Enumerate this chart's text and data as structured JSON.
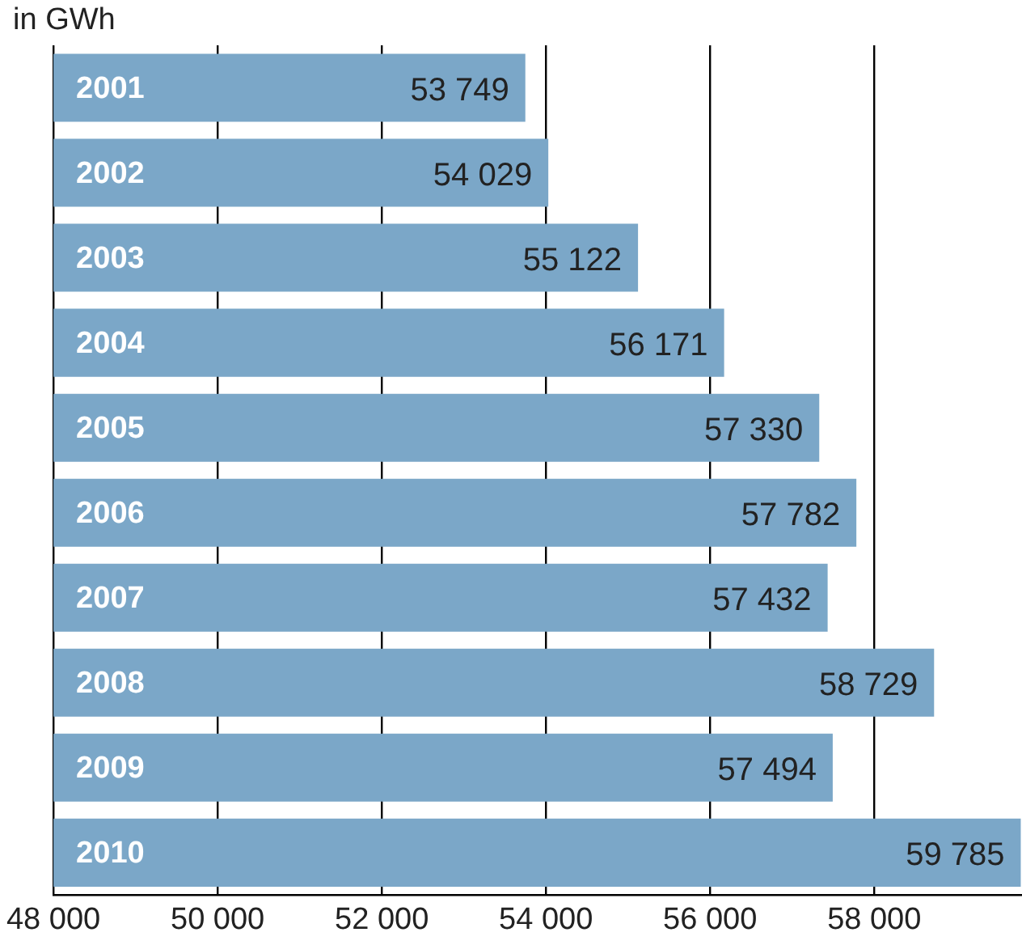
{
  "chart_data": {
    "type": "bar",
    "orientation": "horizontal",
    "xlabel": "in GWh",
    "categories": [
      "2001",
      "2002",
      "2003",
      "2004",
      "2005",
      "2006",
      "2007",
      "2008",
      "2009",
      "2010"
    ],
    "values": [
      53749,
      54029,
      55122,
      56171,
      57330,
      57782,
      57432,
      58729,
      57494,
      59785
    ],
    "color": "#7ba7c8",
    "xlim": [
      48000,
      59800
    ],
    "xticks": [
      {
        "value": 48000,
        "label": "48 000"
      },
      {
        "value": 50000,
        "label": "50 000"
      },
      {
        "value": 52000,
        "label": "52 000"
      },
      {
        "value": 54000,
        "label": "54 000"
      },
      {
        "value": 56000,
        "label": "56 000"
      },
      {
        "value": 58000,
        "label": "58 000"
      }
    ],
    "value_labels": [
      "53 749",
      "54 029",
      "55 122",
      "56 171",
      "57 330",
      "57 782",
      "57 432",
      "58 729",
      "57 494",
      "59 785"
    ],
    "grid": "x",
    "legend": false
  }
}
